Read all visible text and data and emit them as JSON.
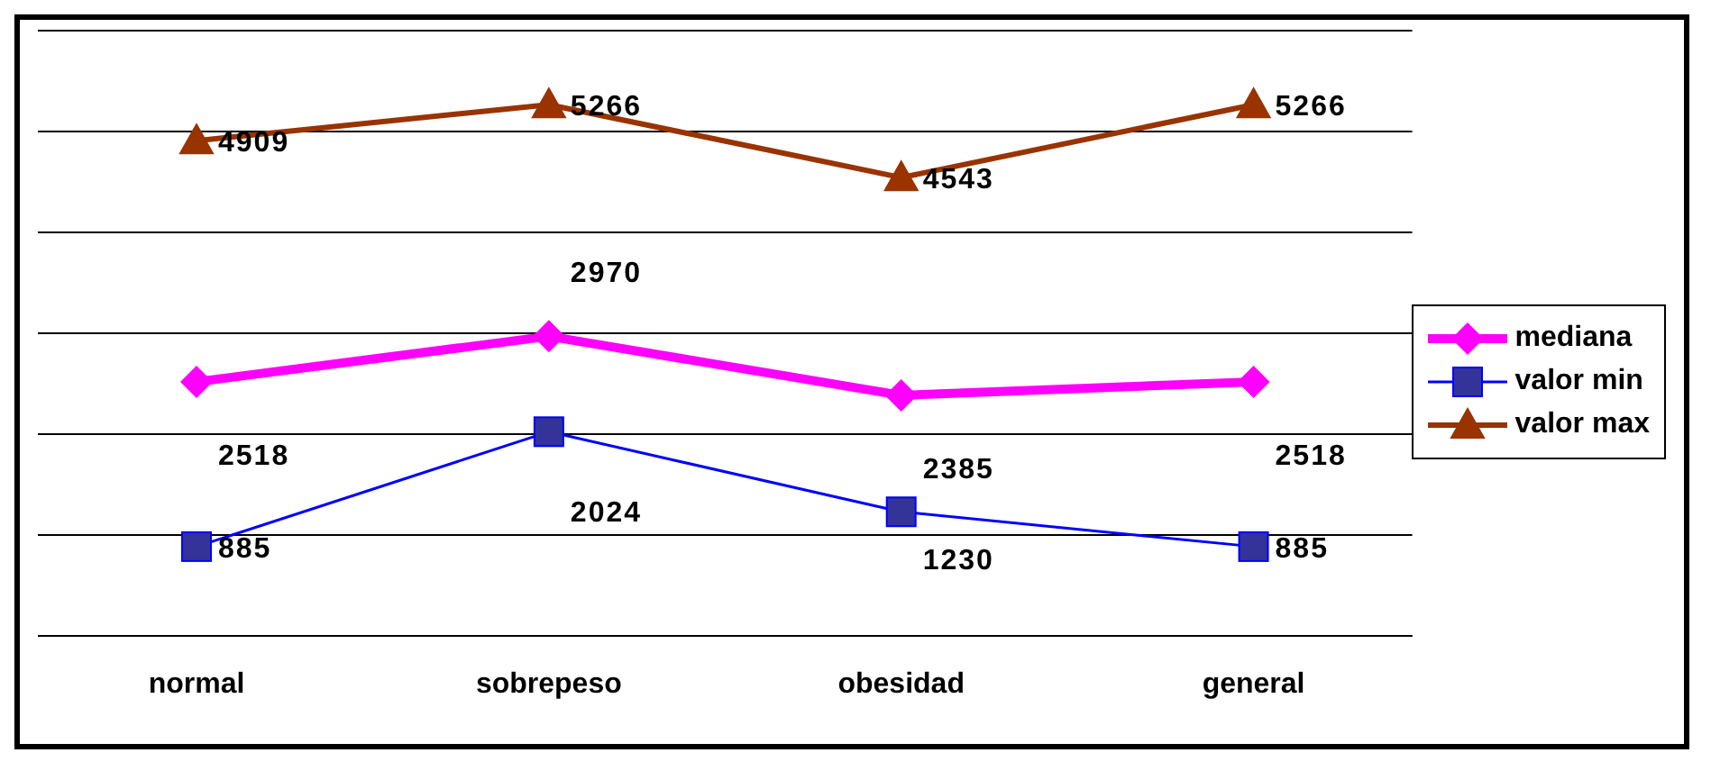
{
  "chart_data": {
    "type": "line",
    "categories": [
      "normal",
      "sobrepeso",
      "obesidad",
      "general"
    ],
    "series": [
      {
        "name": "mediana",
        "color": "#ff00ff",
        "values": [
          2518,
          2970,
          2385,
          2518
        ],
        "marker": "diamond"
      },
      {
        "name": "valor min",
        "color": "#0000ff",
        "values": [
          885,
          2024,
          1230,
          885
        ],
        "marker": "square"
      },
      {
        "name": "valor max",
        "color": "#993300",
        "values": [
          4909,
          5266,
          4543,
          5266
        ],
        "marker": "triangle"
      }
    ],
    "ylim": [
      0,
      6000
    ],
    "tick_labels": "x",
    "grid": "y",
    "legend": "right",
    "data_labels": true
  }
}
